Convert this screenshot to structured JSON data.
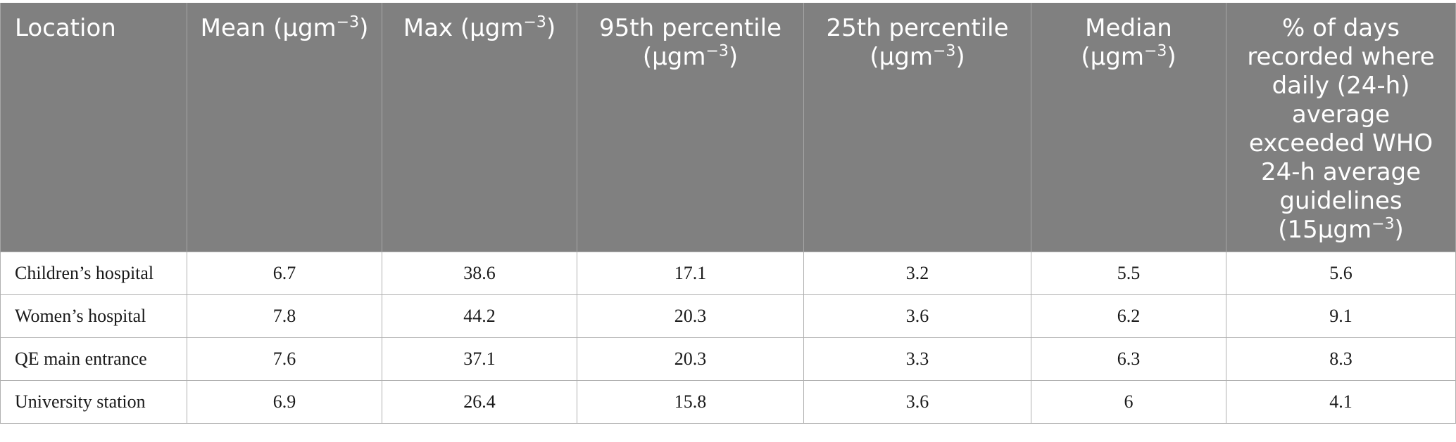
{
  "table": {
    "headers": [
      {
        "text": "Location",
        "unit": "",
        "exp": ""
      },
      {
        "text": "Mean (μgm",
        "unit": ")",
        "exp": "−3"
      },
      {
        "text": "Max (μgm",
        "unit": ")",
        "exp": "−3"
      },
      {
        "text": "95th percentile (μgm",
        "unit": ")",
        "exp": "−3"
      },
      {
        "text": "25th percentile (μgm",
        "unit": ")",
        "exp": "−3"
      },
      {
        "text": "Median (μgm",
        "unit": ")",
        "exp": "−3"
      },
      {
        "text": "% of days recorded where daily (24-h) average exceeded WHO 24-h average guidelines (15μgm",
        "unit": ")",
        "exp": "−3"
      }
    ],
    "rows": [
      [
        "Children’s hospital",
        "6.7",
        "38.6",
        "17.1",
        "3.2",
        "5.5",
        "5.6"
      ],
      [
        "Women’s hospital",
        "7.8",
        "44.2",
        "20.3",
        "3.6",
        "6.2",
        "9.1"
      ],
      [
        "QE main entrance",
        "7.6",
        "37.1",
        "20.3",
        "3.3",
        "6.3",
        "8.3"
      ],
      [
        "University station",
        "6.9",
        "26.4",
        "15.8",
        "3.6",
        "6",
        "4.1"
      ]
    ]
  },
  "colors": {
    "header_bg": "#808080",
    "header_text": "#ffffff",
    "grid": "#b0b0b0"
  }
}
